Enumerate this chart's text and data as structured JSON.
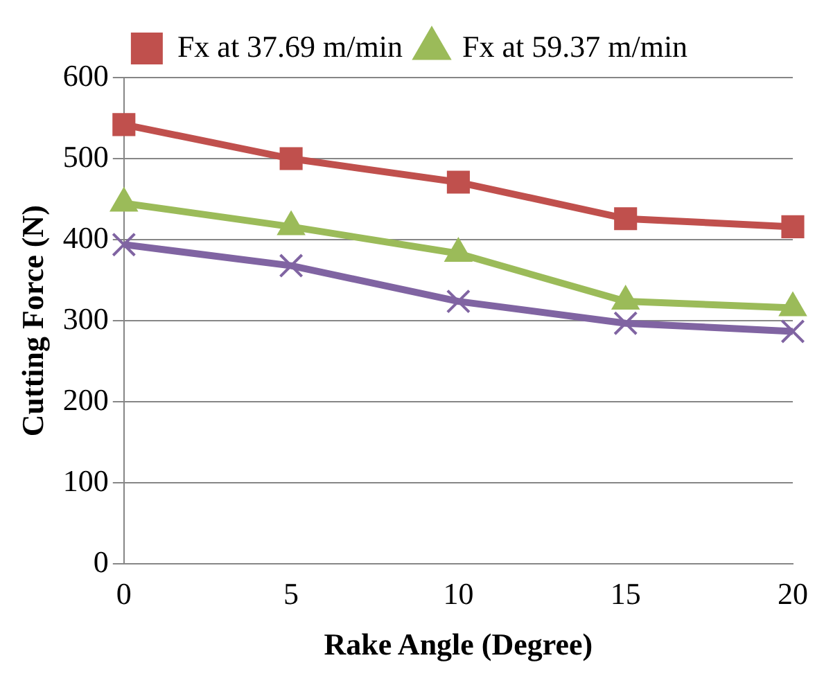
{
  "chart_data": {
    "type": "line",
    "xlabel": "Rake Angle (Degree)",
    "ylabel": "Cutting Force (N)",
    "categories": [
      "0",
      "5",
      "10",
      "15",
      "20"
    ],
    "series": [
      {
        "name": "Fx at 37.69 m/min",
        "color": "#c0504d",
        "marker": "square",
        "values": [
          542,
          500,
          471,
          426,
          416
        ]
      },
      {
        "name": "Fx at 59.37 m/min",
        "color": "#9bbb59",
        "marker": "triangle",
        "values": [
          445,
          416,
          383,
          324,
          316
        ]
      },
      {
        "color": "#8064a2",
        "marker": "cross",
        "values": [
          394,
          368,
          324,
          297,
          287
        ]
      }
    ],
    "ylim": [
      0,
      600
    ],
    "yticks": [
      0,
      100,
      200,
      300,
      400,
      500,
      600
    ],
    "grid": "y",
    "legend": "top",
    "line_style": "solid"
  }
}
